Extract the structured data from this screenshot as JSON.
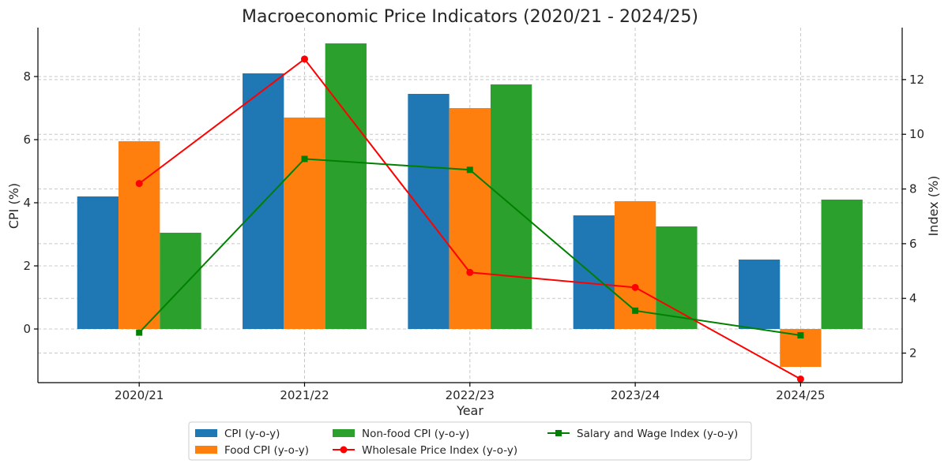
{
  "chart_data": {
    "type": "bar",
    "title": "Macroeconomic Price Indicators (2020/21 - 2024/25)",
    "xlabel": "Year",
    "ylabel_left": "CPI (%)",
    "ylabel_right": "Index (%)",
    "categories": [
      "2020/21",
      "2021/22",
      "2022/23",
      "2023/24",
      "2024/25"
    ],
    "left_ylim": [
      -1.7,
      9.55
    ],
    "left_ticks": [
      0,
      2,
      4,
      6,
      8
    ],
    "right_ylim": [
      0.92,
      13.9
    ],
    "right_ticks": [
      2,
      4,
      6,
      8,
      10,
      12
    ],
    "grid": true,
    "legend_position": "bottom-center",
    "bar_series": [
      {
        "name": "CPI (y-o-y)",
        "color": "#1f77b4",
        "values": [
          4.2,
          8.1,
          7.45,
          3.6,
          2.2
        ]
      },
      {
        "name": "Food CPI (y-o-y)",
        "color": "#ff7f0e",
        "values": [
          5.95,
          6.7,
          7.0,
          4.05,
          -1.2
        ]
      },
      {
        "name": "Non-food CPI (y-o-y)",
        "color": "#2ca02c",
        "values": [
          3.05,
          9.05,
          7.75,
          3.25,
          4.1
        ]
      }
    ],
    "line_series": [
      {
        "name": "Wholesale Price Index (y-o-y)",
        "color": "#ff0000",
        "marker": "circle",
        "axis": "right",
        "values": [
          8.2,
          12.75,
          4.95,
          4.4,
          1.05
        ]
      },
      {
        "name": "Salary and Wage Index (y-o-y)",
        "color": "#008000",
        "marker": "square",
        "axis": "right",
        "values": [
          2.75,
          9.1,
          8.7,
          3.55,
          2.65
        ]
      }
    ]
  }
}
